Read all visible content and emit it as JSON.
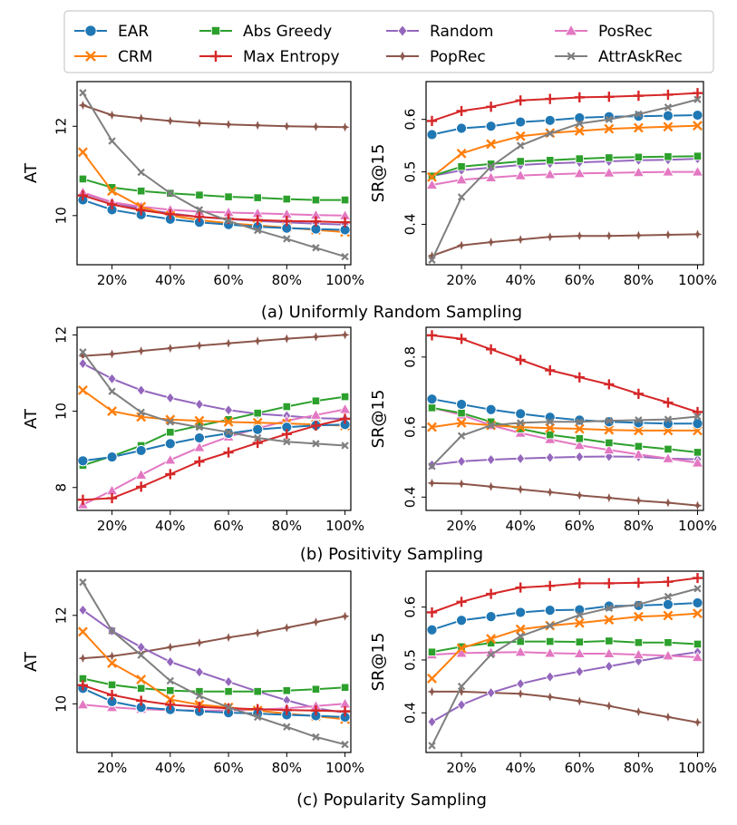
{
  "colors": {
    "EAR": "#1f77b4",
    "CRM": "#ff7f0e",
    "Abs Greedy": "#2ca02c",
    "Max Entropy": "#d62728",
    "Random": "#9467bd",
    "PopRec": "#8c564b",
    "PosRec": "#e377c2",
    "AttrAskRec": "#7f7f7f"
  },
  "legend": [
    {
      "name": "EAR",
      "marker": "circle"
    },
    {
      "name": "CRM",
      "marker": "x"
    },
    {
      "name": "Abs Greedy",
      "marker": "square"
    },
    {
      "name": "Max Entropy",
      "marker": "plus"
    },
    {
      "name": "Random",
      "marker": "diamond"
    },
    {
      "name": "PopRec",
      "marker": "star"
    },
    {
      "name": "PosRec",
      "marker": "triangle"
    },
    {
      "name": "AttrAskRec",
      "marker": "xsmall"
    }
  ],
  "captions": [
    "(a) Uniformly Random Sampling",
    "(b) Positivity Sampling",
    "(c) Popularity Sampling"
  ],
  "chart_data": [
    {
      "type": "line",
      "id": "a-at",
      "ylabel": "AT",
      "x": [
        10,
        20,
        30,
        40,
        50,
        60,
        70,
        80,
        90,
        100
      ],
      "xticks": [
        20,
        40,
        60,
        80,
        100
      ],
      "xticklabels": [
        "20%",
        "40%",
        "60%",
        "80%",
        "100%"
      ],
      "xlim": [
        8,
        102
      ],
      "ylim": [
        8.9,
        13.0
      ],
      "yticks": [
        10,
        12
      ],
      "yticklabels": [
        "10",
        "12"
      ],
      "series": [
        {
          "name": "EAR",
          "values": [
            10.35,
            10.13,
            10.02,
            9.92,
            9.85,
            9.8,
            9.75,
            9.72,
            9.7,
            9.68
          ]
        },
        {
          "name": "CRM",
          "values": [
            11.42,
            10.55,
            10.2,
            10.0,
            9.9,
            9.83,
            9.78,
            9.73,
            9.68,
            9.63
          ]
        },
        {
          "name": "Abs Greedy",
          "values": [
            10.82,
            10.63,
            10.55,
            10.5,
            10.46,
            10.42,
            10.4,
            10.37,
            10.35,
            10.35
          ]
        },
        {
          "name": "Max Entropy",
          "values": [
            10.45,
            10.25,
            10.12,
            10.03,
            9.97,
            9.93,
            9.9,
            9.88,
            9.87,
            9.85
          ]
        },
        {
          "name": "Random",
          "values": [
            10.5,
            10.3,
            10.15,
            10.05,
            9.97,
            9.92,
            9.88,
            9.85,
            9.82,
            9.8
          ]
        },
        {
          "name": "PopRec",
          "values": [
            12.47,
            12.25,
            12.18,
            12.12,
            12.07,
            12.04,
            12.02,
            12.0,
            11.99,
            11.98
          ]
        },
        {
          "name": "PosRec",
          "values": [
            10.52,
            10.3,
            10.2,
            10.13,
            10.09,
            10.07,
            10.05,
            10.03,
            10.01,
            10.0
          ]
        },
        {
          "name": "AttrAskRec",
          "values": [
            12.75,
            11.67,
            10.97,
            10.5,
            10.13,
            9.88,
            9.67,
            9.48,
            9.28,
            9.08
          ]
        }
      ]
    },
    {
      "type": "line",
      "id": "a-sr",
      "ylabel": "SR@15",
      "x": [
        10,
        20,
        30,
        40,
        50,
        60,
        70,
        80,
        90,
        100
      ],
      "xticks": [
        20,
        40,
        60,
        80,
        100
      ],
      "xticklabels": [
        "20%",
        "40%",
        "60%",
        "80%",
        "100%"
      ],
      "xlim": [
        8,
        102
      ],
      "ylim": [
        0.323,
        0.672
      ],
      "yticks": [
        0.4,
        0.5,
        0.6
      ],
      "yticklabels": [
        "0.4",
        "0.5",
        "0.6"
      ],
      "series": [
        {
          "name": "EAR",
          "values": [
            0.571,
            0.583,
            0.587,
            0.595,
            0.598,
            0.603,
            0.605,
            0.606,
            0.607,
            0.608
          ]
        },
        {
          "name": "CRM",
          "values": [
            0.49,
            0.535,
            0.553,
            0.568,
            0.574,
            0.578,
            0.582,
            0.584,
            0.586,
            0.588
          ]
        },
        {
          "name": "Abs Greedy",
          "values": [
            0.492,
            0.51,
            0.515,
            0.52,
            0.522,
            0.525,
            0.527,
            0.528,
            0.529,
            0.53
          ]
        },
        {
          "name": "Max Entropy",
          "values": [
            0.597,
            0.616,
            0.624,
            0.636,
            0.639,
            0.642,
            0.643,
            0.645,
            0.647,
            0.65
          ]
        },
        {
          "name": "Random",
          "values": [
            0.492,
            0.503,
            0.508,
            0.513,
            0.516,
            0.518,
            0.52,
            0.522,
            0.523,
            0.525
          ]
        },
        {
          "name": "PopRec",
          "values": [
            0.34,
            0.36,
            0.366,
            0.371,
            0.376,
            0.378,
            0.378,
            0.379,
            0.38,
            0.381
          ]
        },
        {
          "name": "PosRec",
          "values": [
            0.475,
            0.485,
            0.489,
            0.493,
            0.495,
            0.497,
            0.498,
            0.499,
            0.5,
            0.5
          ]
        },
        {
          "name": "AttrAskRec",
          "values": [
            0.332,
            0.452,
            0.51,
            0.55,
            0.573,
            0.592,
            0.6,
            0.61,
            0.623,
            0.638
          ]
        }
      ]
    },
    {
      "type": "line",
      "id": "b-at",
      "ylabel": "AT",
      "x": [
        10,
        20,
        30,
        40,
        50,
        60,
        70,
        80,
        90,
        100
      ],
      "xticks": [
        20,
        40,
        60,
        80,
        100
      ],
      "xticklabels": [
        "20%",
        "40%",
        "60%",
        "80%",
        "100%"
      ],
      "xlim": [
        8,
        102
      ],
      "ylim": [
        7.4,
        12.2
      ],
      "yticks": [
        8,
        10,
        12
      ],
      "yticklabels": [
        "8",
        "10",
        "12"
      ],
      "series": [
        {
          "name": "EAR",
          "values": [
            8.7,
            8.8,
            8.97,
            9.15,
            9.3,
            9.42,
            9.52,
            9.58,
            9.63,
            9.65
          ]
        },
        {
          "name": "CRM",
          "values": [
            10.55,
            10.0,
            9.85,
            9.78,
            9.75,
            9.72,
            9.7,
            9.68,
            9.65,
            9.62
          ]
        },
        {
          "name": "Abs Greedy",
          "values": [
            8.58,
            8.82,
            9.1,
            9.45,
            9.62,
            9.78,
            9.95,
            10.12,
            10.27,
            10.38
          ]
        },
        {
          "name": "Max Entropy",
          "values": [
            7.68,
            7.72,
            8.02,
            8.35,
            8.68,
            8.92,
            9.17,
            9.4,
            9.62,
            9.8
          ]
        },
        {
          "name": "Random",
          "values": [
            11.25,
            10.85,
            10.55,
            10.35,
            10.18,
            10.03,
            9.93,
            9.88,
            9.82,
            9.8
          ]
        },
        {
          "name": "PopRec",
          "values": [
            11.45,
            11.5,
            11.58,
            11.65,
            11.72,
            11.78,
            11.84,
            11.9,
            11.95,
            12.0
          ]
        },
        {
          "name": "PosRec",
          "values": [
            7.55,
            7.92,
            8.33,
            8.72,
            9.05,
            9.33,
            9.55,
            9.75,
            9.9,
            10.05
          ]
        },
        {
          "name": "AttrAskRec",
          "values": [
            11.55,
            10.52,
            9.97,
            9.72,
            9.58,
            9.45,
            9.3,
            9.2,
            9.15,
            9.1
          ]
        }
      ]
    },
    {
      "type": "line",
      "id": "b-sr",
      "ylabel": "SR@15",
      "x": [
        10,
        20,
        30,
        40,
        50,
        60,
        70,
        80,
        90,
        100
      ],
      "xticks": [
        20,
        40,
        60,
        80,
        100
      ],
      "xticklabels": [
        "20%",
        "40%",
        "60%",
        "80%",
        "100%"
      ],
      "xlim": [
        8,
        102
      ],
      "ylim": [
        0.362,
        0.885
      ],
      "yticks": [
        0.4,
        0.6,
        0.8
      ],
      "yticklabels": [
        "0.4",
        "0.6",
        "0.8"
      ],
      "series": [
        {
          "name": "EAR",
          "values": [
            0.68,
            0.665,
            0.65,
            0.638,
            0.628,
            0.62,
            0.615,
            0.612,
            0.61,
            0.61
          ]
        },
        {
          "name": "CRM",
          "values": [
            0.6,
            0.612,
            0.605,
            0.6,
            0.597,
            0.595,
            0.592,
            0.59,
            0.59,
            0.59
          ]
        },
        {
          "name": "Abs Greedy",
          "values": [
            0.655,
            0.64,
            0.615,
            0.595,
            0.578,
            0.567,
            0.555,
            0.545,
            0.537,
            0.528
          ]
        },
        {
          "name": "Max Entropy",
          "values": [
            0.862,
            0.852,
            0.822,
            0.792,
            0.762,
            0.742,
            0.722,
            0.695,
            0.67,
            0.643
          ]
        },
        {
          "name": "Random",
          "values": [
            0.492,
            0.502,
            0.507,
            0.51,
            0.513,
            0.515,
            0.516,
            0.515,
            0.51,
            0.508
          ]
        },
        {
          "name": "PopRec",
          "values": [
            0.44,
            0.438,
            0.43,
            0.422,
            0.414,
            0.405,
            0.398,
            0.39,
            0.384,
            0.376
          ]
        },
        {
          "name": "PosRec",
          "values": [
            0.655,
            0.635,
            0.605,
            0.583,
            0.565,
            0.548,
            0.535,
            0.522,
            0.51,
            0.498
          ]
        },
        {
          "name": "AttrAskRec",
          "values": [
            0.488,
            0.575,
            0.605,
            0.612,
            0.615,
            0.615,
            0.618,
            0.62,
            0.622,
            0.63
          ]
        }
      ]
    },
    {
      "type": "line",
      "id": "c-at",
      "ylabel": "AT",
      "x": [
        10,
        20,
        30,
        40,
        50,
        60,
        70,
        80,
        90,
        100
      ],
      "xticks": [
        20,
        40,
        60,
        80,
        100
      ],
      "xticklabels": [
        "20%",
        "40%",
        "60%",
        "80%",
        "100%"
      ],
      "xlim": [
        8,
        102
      ],
      "ylim": [
        8.9,
        13.0
      ],
      "yticks": [
        10,
        12
      ],
      "yticklabels": [
        "10",
        "12"
      ],
      "series": [
        {
          "name": "EAR",
          "values": [
            10.35,
            10.05,
            9.92,
            9.87,
            9.83,
            9.8,
            9.78,
            9.75,
            9.73,
            9.7
          ]
        },
        {
          "name": "CRM",
          "values": [
            11.63,
            10.92,
            10.55,
            10.1,
            9.98,
            9.92,
            9.85,
            9.78,
            9.72,
            9.65
          ]
        },
        {
          "name": "Abs Greedy",
          "values": [
            10.57,
            10.43,
            10.35,
            10.3,
            10.28,
            10.28,
            10.28,
            10.3,
            10.33,
            10.37
          ]
        },
        {
          "name": "Max Entropy",
          "values": [
            10.42,
            10.2,
            10.07,
            9.98,
            9.93,
            9.9,
            9.88,
            9.86,
            9.85,
            9.83
          ]
        },
        {
          "name": "Random",
          "values": [
            12.12,
            11.65,
            11.28,
            10.95,
            10.72,
            10.5,
            10.28,
            10.08,
            9.9,
            9.8
          ]
        },
        {
          "name": "PopRec",
          "values": [
            11.03,
            11.08,
            11.17,
            11.28,
            11.38,
            11.5,
            11.6,
            11.72,
            11.85,
            11.98
          ]
        },
        {
          "name": "PosRec",
          "values": [
            9.98,
            9.92,
            9.88,
            9.86,
            9.85,
            9.85,
            9.87,
            9.9,
            9.95,
            10.0
          ]
        },
        {
          "name": "AttrAskRec",
          "values": [
            12.75,
            11.65,
            11.1,
            10.52,
            10.18,
            9.92,
            9.7,
            9.48,
            9.25,
            9.08
          ]
        }
      ]
    },
    {
      "type": "line",
      "id": "c-sr",
      "ylabel": "SR@15",
      "x": [
        10,
        20,
        30,
        40,
        50,
        60,
        70,
        80,
        90,
        100
      ],
      "xticks": [
        20,
        40,
        60,
        80,
        100
      ],
      "xticklabels": [
        "20%",
        "40%",
        "60%",
        "80%",
        "100%"
      ],
      "xlim": [
        8,
        102
      ],
      "ylim": [
        0.325,
        0.668
      ],
      "yticks": [
        0.4,
        0.5,
        0.6
      ],
      "yticklabels": [
        "0.4",
        "0.5",
        "0.6"
      ],
      "series": [
        {
          "name": "EAR",
          "values": [
            0.557,
            0.575,
            0.582,
            0.59,
            0.594,
            0.595,
            0.602,
            0.603,
            0.605,
            0.608
          ]
        },
        {
          "name": "CRM",
          "values": [
            0.465,
            0.522,
            0.54,
            0.558,
            0.565,
            0.57,
            0.576,
            0.582,
            0.584,
            0.588
          ]
        },
        {
          "name": "Abs Greedy",
          "values": [
            0.515,
            0.525,
            0.532,
            0.535,
            0.535,
            0.534,
            0.536,
            0.533,
            0.533,
            0.53
          ]
        },
        {
          "name": "Max Entropy",
          "values": [
            0.59,
            0.61,
            0.625,
            0.637,
            0.64,
            0.645,
            0.645,
            0.646,
            0.648,
            0.655
          ]
        },
        {
          "name": "Random",
          "values": [
            0.383,
            0.415,
            0.438,
            0.455,
            0.468,
            0.478,
            0.488,
            0.498,
            0.507,
            0.515
          ]
        },
        {
          "name": "PopRec",
          "values": [
            0.44,
            0.44,
            0.438,
            0.436,
            0.43,
            0.422,
            0.413,
            0.402,
            0.392,
            0.382
          ]
        },
        {
          "name": "PosRec",
          "values": [
            0.51,
            0.513,
            0.514,
            0.515,
            0.513,
            0.512,
            0.512,
            0.51,
            0.508,
            0.505
          ]
        },
        {
          "name": "AttrAskRec",
          "values": [
            0.338,
            0.45,
            0.51,
            0.545,
            0.565,
            0.585,
            0.598,
            0.605,
            0.62,
            0.635
          ]
        }
      ]
    }
  ]
}
